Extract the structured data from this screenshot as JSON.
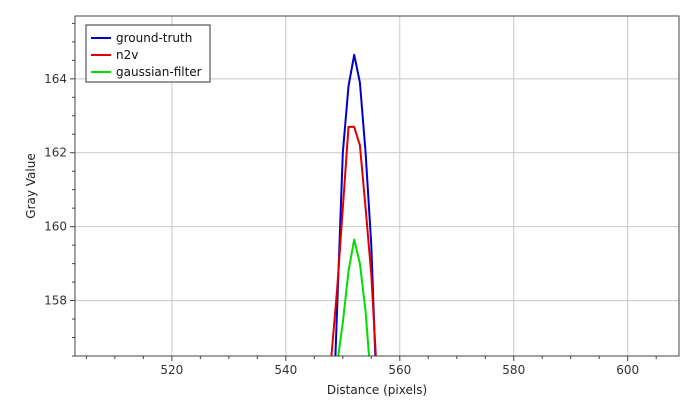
{
  "chart_data": {
    "type": "line",
    "title": "",
    "xlabel": "Distance (pixels)",
    "ylabel": "Gray Value",
    "xlim": [
      503,
      609
    ],
    "ylim": [
      156.5,
      165.7
    ],
    "xticks": [
      520,
      540,
      560,
      580,
      600
    ],
    "yticks": [
      158,
      160,
      162,
      164
    ],
    "grid": true,
    "legend_position": "top-left",
    "series": [
      {
        "name": "ground-truth",
        "color": "#0000cc",
        "x": [
          548.7,
          550.0,
          551.0,
          552.0,
          553.0,
          554.0,
          555.0,
          555.7
        ],
        "y": [
          156.5,
          162.0,
          163.8,
          164.65,
          163.9,
          162.0,
          159.5,
          156.5
        ]
      },
      {
        "name": "n2v",
        "color": "#dd0000",
        "x": [
          548.0,
          549.0,
          550.0,
          551.0,
          552.0,
          553.0,
          554.0,
          555.0,
          555.8
        ],
        "y": [
          156.5,
          158.3,
          160.5,
          162.7,
          162.7,
          162.2,
          160.5,
          158.7,
          156.5
        ]
      },
      {
        "name": "gaussian-filter",
        "color": "#00dd00",
        "x": [
          549.2,
          550.0,
          551.0,
          552.0,
          553.0,
          554.0,
          554.6
        ],
        "y": [
          156.5,
          157.4,
          158.8,
          159.65,
          159.0,
          157.7,
          156.5
        ]
      }
    ]
  }
}
